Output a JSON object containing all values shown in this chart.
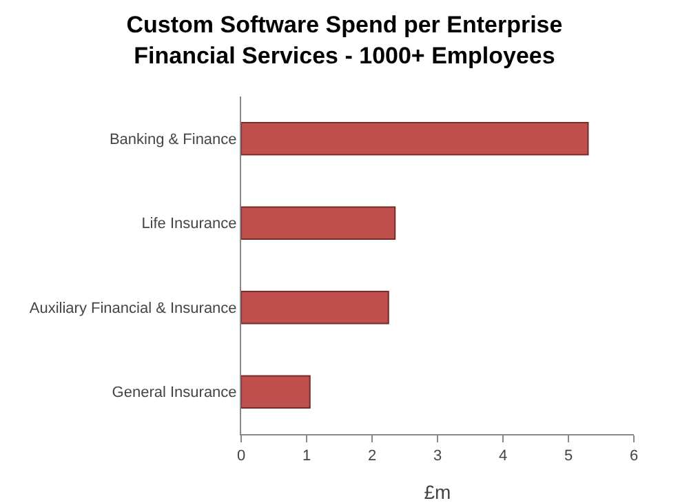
{
  "chart_data": {
    "type": "bar",
    "title": "Custom Software Spend per Enterprise\nFinancial Services - 1000+ Employees",
    "orientation": "horizontal",
    "categories": [
      "Banking & Finance",
      "Life Insurance",
      "Auxiliary Financial & Insurance",
      "General Insurance"
    ],
    "values": [
      5.3,
      2.35,
      2.25,
      1.05
    ],
    "color": "#c0504d",
    "xlabel": "£m",
    "xlim": [
      0,
      6
    ],
    "xticks": [
      0,
      1,
      2,
      3,
      4,
      5,
      6
    ],
    "grid": false
  }
}
